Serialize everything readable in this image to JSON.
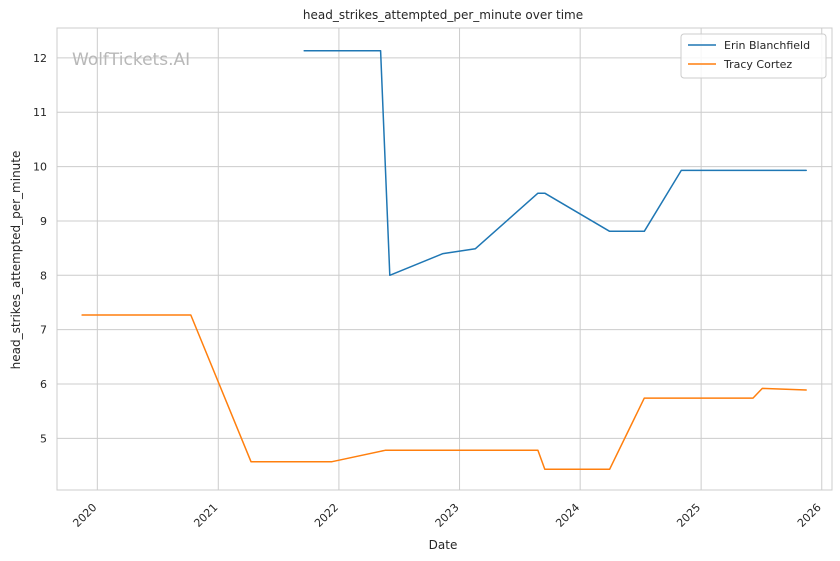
{
  "chart_data": {
    "type": "line",
    "title": "head_strikes_attempted_per_minute over time",
    "xlabel": "Date",
    "ylabel": "head_strikes_attempted_per_minute",
    "watermark": "WolfTickets.AI",
    "xlim": [
      "2019-09-01",
      "2026-02-01"
    ],
    "ylim": [
      4.05,
      12.55
    ],
    "x_ticks": [
      "2020",
      "2021",
      "2022",
      "2023",
      "2024",
      "2025",
      "2026"
    ],
    "y_ticks": [
      "5",
      "6",
      "7",
      "8",
      "9",
      "10",
      "11",
      "12"
    ],
    "grid": true,
    "legend_position": "top-right",
    "series": [
      {
        "name": "Erin Blanchfield",
        "color": "#1f77b4",
        "points": [
          [
            "2021-09-18",
            12.13
          ],
          [
            "2022-05-07",
            12.13
          ],
          [
            "2022-06-04",
            8.0
          ],
          [
            "2022-11-12",
            8.4
          ],
          [
            "2023-02-18",
            8.49
          ],
          [
            "2023-08-26",
            9.51
          ],
          [
            "2023-09-16",
            9.51
          ],
          [
            "2024-03-30",
            8.81
          ],
          [
            "2024-07-13",
            8.81
          ],
          [
            "2024-11-02",
            9.93
          ],
          [
            "2025-11-15",
            9.93
          ]
        ]
      },
      {
        "name": "Tracy Cortez",
        "color": "#ff7f0e",
        "points": [
          [
            "2019-11-16",
            7.27
          ],
          [
            "2020-10-10",
            7.27
          ],
          [
            "2021-04-10",
            4.57
          ],
          [
            "2021-12-11",
            4.57
          ],
          [
            "2022-05-21",
            4.78
          ],
          [
            "2023-08-26",
            4.78
          ],
          [
            "2023-09-16",
            4.43
          ],
          [
            "2024-03-30",
            4.43
          ],
          [
            "2024-07-13",
            5.74
          ],
          [
            "2025-06-07",
            5.74
          ],
          [
            "2025-07-05",
            5.92
          ],
          [
            "2025-11-15",
            5.89
          ]
        ]
      }
    ]
  }
}
